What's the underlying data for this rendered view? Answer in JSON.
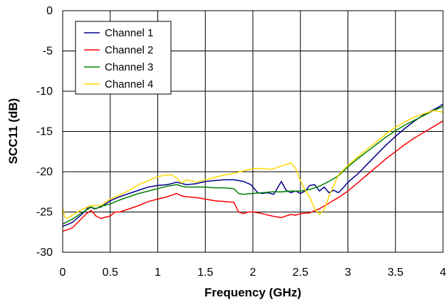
{
  "chart_data": {
    "type": "line",
    "xlabel": "Frequency (GHz)",
    "ylabel": "SCC11 (dB)",
    "xlim": [
      0,
      4
    ],
    "ylim": [
      -30,
      0
    ],
    "xticks": [
      0,
      0.5,
      1,
      1.5,
      2,
      2.5,
      3,
      3.5,
      4
    ],
    "yticks": [
      0,
      -5,
      -10,
      -15,
      -20,
      -25,
      -30
    ],
    "xtick_labels": [
      "0",
      "0.5",
      "1",
      "1.5",
      "2",
      "2.5",
      "3",
      "3.5",
      "4"
    ],
    "ytick_labels": [
      "0",
      "-5",
      "-10",
      "-15",
      "-20",
      "-25",
      "-30"
    ],
    "grid": true,
    "legend_position": "top-left",
    "series": [
      {
        "name": "Channel 1",
        "color": "#00008b",
        "points": [
          [
            0,
            -26.8
          ],
          [
            0.1,
            -26.3
          ],
          [
            0.2,
            -25.3
          ],
          [
            0.28,
            -24.3
          ],
          [
            0.33,
            -24.6
          ],
          [
            0.4,
            -24.4
          ],
          [
            0.5,
            -23.6
          ],
          [
            0.6,
            -23.1
          ],
          [
            0.7,
            -22.7
          ],
          [
            0.8,
            -22.3
          ],
          [
            0.9,
            -21.9
          ],
          [
            1.0,
            -21.7
          ],
          [
            1.1,
            -21.6
          ],
          [
            1.2,
            -21.3
          ],
          [
            1.3,
            -21.6
          ],
          [
            1.4,
            -21.5
          ],
          [
            1.5,
            -21.2
          ],
          [
            1.6,
            -21.1
          ],
          [
            1.7,
            -21.0
          ],
          [
            1.8,
            -21.0
          ],
          [
            1.9,
            -21.2
          ],
          [
            1.98,
            -21.6
          ],
          [
            2.05,
            -22.6
          ],
          [
            2.1,
            -22.7
          ],
          [
            2.15,
            -22.6
          ],
          [
            2.22,
            -22.8
          ],
          [
            2.3,
            -21.2
          ],
          [
            2.35,
            -22.3
          ],
          [
            2.4,
            -22.6
          ],
          [
            2.45,
            -22.4
          ],
          [
            2.5,
            -22.7
          ],
          [
            2.55,
            -22.4
          ],
          [
            2.6,
            -21.7
          ],
          [
            2.65,
            -21.6
          ],
          [
            2.7,
            -22.4
          ],
          [
            2.75,
            -21.9
          ],
          [
            2.8,
            -22.6
          ],
          [
            2.85,
            -22.3
          ],
          [
            2.9,
            -22.6
          ],
          [
            2.95,
            -22.0
          ],
          [
            3.0,
            -21.3
          ],
          [
            3.1,
            -20.3
          ],
          [
            3.2,
            -19.1
          ],
          [
            3.3,
            -17.9
          ],
          [
            3.4,
            -16.7
          ],
          [
            3.5,
            -15.6
          ],
          [
            3.6,
            -14.6
          ],
          [
            3.7,
            -13.7
          ],
          [
            3.8,
            -12.9
          ],
          [
            3.9,
            -12.3
          ],
          [
            3.95,
            -12.0
          ],
          [
            4.0,
            -11.6
          ]
        ]
      },
      {
        "name": "Channel 2",
        "color": "#ff0000",
        "points": [
          [
            0,
            -27.4
          ],
          [
            0.1,
            -27.0
          ],
          [
            0.2,
            -25.8
          ],
          [
            0.25,
            -25.2
          ],
          [
            0.3,
            -24.8
          ],
          [
            0.35,
            -25.5
          ],
          [
            0.4,
            -25.8
          ],
          [
            0.5,
            -25.5
          ],
          [
            0.55,
            -25.0
          ],
          [
            0.6,
            -25.0
          ],
          [
            0.7,
            -24.6
          ],
          [
            0.8,
            -24.2
          ],
          [
            0.9,
            -23.7
          ],
          [
            1.0,
            -23.4
          ],
          [
            1.1,
            -23.1
          ],
          [
            1.15,
            -22.9
          ],
          [
            1.2,
            -22.7
          ],
          [
            1.25,
            -23.0
          ],
          [
            1.3,
            -23.1
          ],
          [
            1.4,
            -23.2
          ],
          [
            1.5,
            -23.4
          ],
          [
            1.6,
            -23.6
          ],
          [
            1.7,
            -23.7
          ],
          [
            1.8,
            -23.8
          ],
          [
            1.85,
            -25.0
          ],
          [
            1.9,
            -25.2
          ],
          [
            1.95,
            -25.0
          ],
          [
            2.0,
            -25.0
          ],
          [
            2.1,
            -25.2
          ],
          [
            2.2,
            -25.5
          ],
          [
            2.3,
            -25.7
          ],
          [
            2.35,
            -25.5
          ],
          [
            2.4,
            -25.3
          ],
          [
            2.45,
            -25.4
          ],
          [
            2.5,
            -25.2
          ],
          [
            2.6,
            -25.1
          ],
          [
            2.7,
            -24.6
          ],
          [
            2.8,
            -23.9
          ],
          [
            2.9,
            -23.2
          ],
          [
            3.0,
            -22.4
          ],
          [
            3.1,
            -21.4
          ],
          [
            3.2,
            -20.4
          ],
          [
            3.3,
            -19.4
          ],
          [
            3.4,
            -18.4
          ],
          [
            3.5,
            -17.5
          ],
          [
            3.6,
            -16.6
          ],
          [
            3.7,
            -15.8
          ],
          [
            3.8,
            -15.1
          ],
          [
            3.9,
            -14.4
          ],
          [
            4.0,
            -13.7
          ]
        ]
      },
      {
        "name": "Channel 3",
        "color": "#008000",
        "points": [
          [
            0,
            -26.5
          ],
          [
            0.1,
            -25.9
          ],
          [
            0.2,
            -25.1
          ],
          [
            0.3,
            -24.4
          ],
          [
            0.35,
            -24.6
          ],
          [
            0.4,
            -24.3
          ],
          [
            0.5,
            -24.0
          ],
          [
            0.6,
            -23.5
          ],
          [
            0.7,
            -23.1
          ],
          [
            0.8,
            -22.7
          ],
          [
            0.9,
            -22.4
          ],
          [
            1.0,
            -22.1
          ],
          [
            1.1,
            -21.8
          ],
          [
            1.2,
            -21.6
          ],
          [
            1.25,
            -21.8
          ],
          [
            1.3,
            -21.9
          ],
          [
            1.4,
            -21.9
          ],
          [
            1.5,
            -21.9
          ],
          [
            1.6,
            -22.0
          ],
          [
            1.7,
            -22.0
          ],
          [
            1.8,
            -22.1
          ],
          [
            1.85,
            -22.7
          ],
          [
            1.9,
            -22.8
          ],
          [
            2.0,
            -22.7
          ],
          [
            2.1,
            -22.6
          ],
          [
            2.2,
            -22.5
          ],
          [
            2.3,
            -22.5
          ],
          [
            2.4,
            -22.4
          ],
          [
            2.5,
            -22.4
          ],
          [
            2.6,
            -22.2
          ],
          [
            2.7,
            -21.8
          ],
          [
            2.8,
            -21.2
          ],
          [
            2.9,
            -20.5
          ],
          [
            3.0,
            -19.4
          ],
          [
            3.1,
            -18.4
          ],
          [
            3.2,
            -17.5
          ],
          [
            3.3,
            -16.6
          ],
          [
            3.4,
            -15.7
          ],
          [
            3.5,
            -14.9
          ],
          [
            3.6,
            -14.2
          ],
          [
            3.7,
            -13.6
          ],
          [
            3.8,
            -13.0
          ],
          [
            3.9,
            -12.4
          ],
          [
            4.0,
            -11.9
          ]
        ]
      },
      {
        "name": "Channel 4",
        "color": "#ffd700",
        "points": [
          [
            0,
            -24.4
          ],
          [
            0.02,
            -25.6
          ],
          [
            0.05,
            -25.8
          ],
          [
            0.1,
            -25.4
          ],
          [
            0.2,
            -24.7
          ],
          [
            0.3,
            -24.2
          ],
          [
            0.4,
            -24.2
          ],
          [
            0.5,
            -23.4
          ],
          [
            0.6,
            -22.9
          ],
          [
            0.7,
            -22.3
          ],
          [
            0.8,
            -21.6
          ],
          [
            0.9,
            -21.1
          ],
          [
            1.0,
            -20.6
          ],
          [
            1.1,
            -20.4
          ],
          [
            1.15,
            -20.4
          ],
          [
            1.2,
            -20.8
          ],
          [
            1.25,
            -21.4
          ],
          [
            1.3,
            -21.0
          ],
          [
            1.4,
            -21.3
          ],
          [
            1.5,
            -21.0
          ],
          [
            1.6,
            -20.7
          ],
          [
            1.7,
            -20.4
          ],
          [
            1.8,
            -20.2
          ],
          [
            1.9,
            -19.9
          ],
          [
            2.0,
            -19.6
          ],
          [
            2.1,
            -19.6
          ],
          [
            2.2,
            -19.7
          ],
          [
            2.3,
            -19.3
          ],
          [
            2.4,
            -18.9
          ],
          [
            2.45,
            -19.6
          ],
          [
            2.5,
            -21.1
          ],
          [
            2.55,
            -22.3
          ],
          [
            2.6,
            -23.2
          ],
          [
            2.65,
            -24.6
          ],
          [
            2.7,
            -25.3
          ],
          [
            2.75,
            -24.7
          ],
          [
            2.8,
            -23.1
          ],
          [
            2.85,
            -21.7
          ],
          [
            2.9,
            -20.4
          ],
          [
            3.0,
            -19.2
          ],
          [
            3.1,
            -18.2
          ],
          [
            3.2,
            -17.2
          ],
          [
            3.3,
            -16.3
          ],
          [
            3.4,
            -15.3
          ],
          [
            3.5,
            -14.5
          ],
          [
            3.6,
            -13.8
          ],
          [
            3.7,
            -13.2
          ],
          [
            3.8,
            -12.8
          ],
          [
            3.9,
            -12.4
          ],
          [
            4.0,
            -12.6
          ]
        ]
      }
    ]
  }
}
